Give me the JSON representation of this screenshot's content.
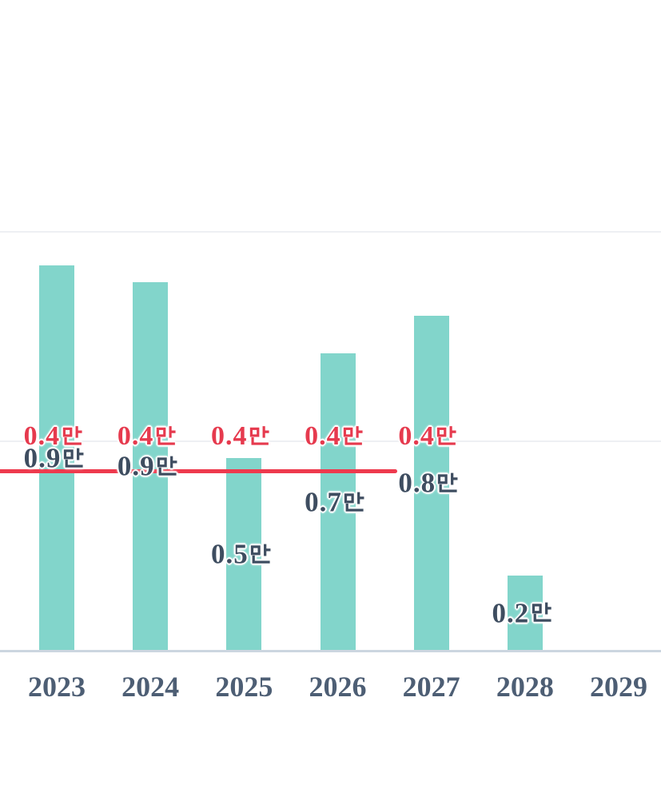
{
  "page": {
    "background": "#ffffff"
  },
  "chart_data": {
    "type": "bar",
    "title": "",
    "xlabel": "",
    "ylabel": "",
    "unit_suffix": "만",
    "categories": [
      "2023",
      "2024",
      "2025",
      "2026",
      "2027",
      "2028",
      "2029"
    ],
    "series": [
      {
        "name": "yearly-volume-bars",
        "color": "#82d5cb",
        "values": [
          0.92,
          0.88,
          0.46,
          0.71,
          0.8,
          0.18,
          0
        ],
        "data_labels": [
          "0.9만",
          "0.9만",
          "0.5만",
          "0.7만",
          "0.8만",
          "0.2만",
          ""
        ]
      }
    ],
    "reference_line": {
      "name": "demand-line",
      "color": "#ee3a4e",
      "value": 0.43,
      "data_label": "0.4만",
      "label_years": [
        "2023",
        "2024",
        "2025",
        "2026",
        "2027"
      ],
      "spans_from_left_edge_to": "2027"
    },
    "ylim": [
      0,
      1.07
    ],
    "gridline_values": [
      0.5,
      1.0
    ],
    "grid": "horizontal",
    "legend": "none",
    "axis": {
      "x_tick_labels": [
        "2023",
        "2024",
        "2025",
        "2026",
        "2027",
        "2028",
        "2029"
      ],
      "y_tick_labels_visible": false
    },
    "colors": {
      "bar": "#82d5cb",
      "reference_line": "#ee3a4e",
      "reference_label": "#e63a4e",
      "value_label": "#3e4d60",
      "axis_label": "#4d5e74",
      "axis_line": "#ccd6e0",
      "gridline": "#eef0f3",
      "background": "#ffffff"
    }
  }
}
